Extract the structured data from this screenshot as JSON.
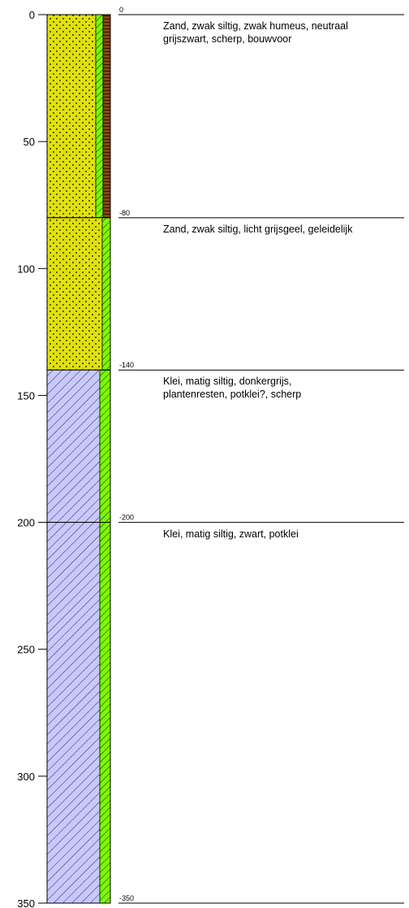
{
  "chart_data": {
    "type": "borehole-log",
    "depth_axis": {
      "ticks": [
        "0",
        "50",
        "100",
        "150",
        "200",
        "250",
        "300",
        "350"
      ],
      "range": [
        0,
        350
      ]
    },
    "layers": [
      {
        "top": 0,
        "bottom": 80,
        "top_label": "0",
        "lithology": "sand",
        "color": "#e0e010",
        "side_color": "#7cfc00",
        "organic_color": "#8b4513",
        "description": [
          "Zand, zwak siltig, zwak humeus, neutraal",
          "grijszwart, scherp, bouwvoor"
        ]
      },
      {
        "top": 80,
        "bottom": 140,
        "top_label": "-80",
        "lithology": "sand",
        "color": "#e0e010",
        "side_color": "#7cfc00",
        "organic_color": "",
        "description": [
          "Zand, zwak siltig, licht grijsgeel, geleidelijk"
        ]
      },
      {
        "top": 140,
        "bottom": 200,
        "top_label": "-140",
        "lithology": "clay",
        "color": "#c8c8ff",
        "side_color": "#7cfc00",
        "organic_color": "",
        "description": [
          "Klei, matig siltig, donkergrijs,",
          "plantenresten, potklei?, scherp"
        ]
      },
      {
        "top": 200,
        "bottom": 350,
        "top_label": "-200",
        "lithology": "clay",
        "color": "#c8c8ff",
        "side_color": "#7cfc00",
        "organic_color": "",
        "description": [
          "Klei, matig siltig, zwart, potklei"
        ]
      }
    ],
    "end_label": "-350",
    "end_depth": 350
  }
}
